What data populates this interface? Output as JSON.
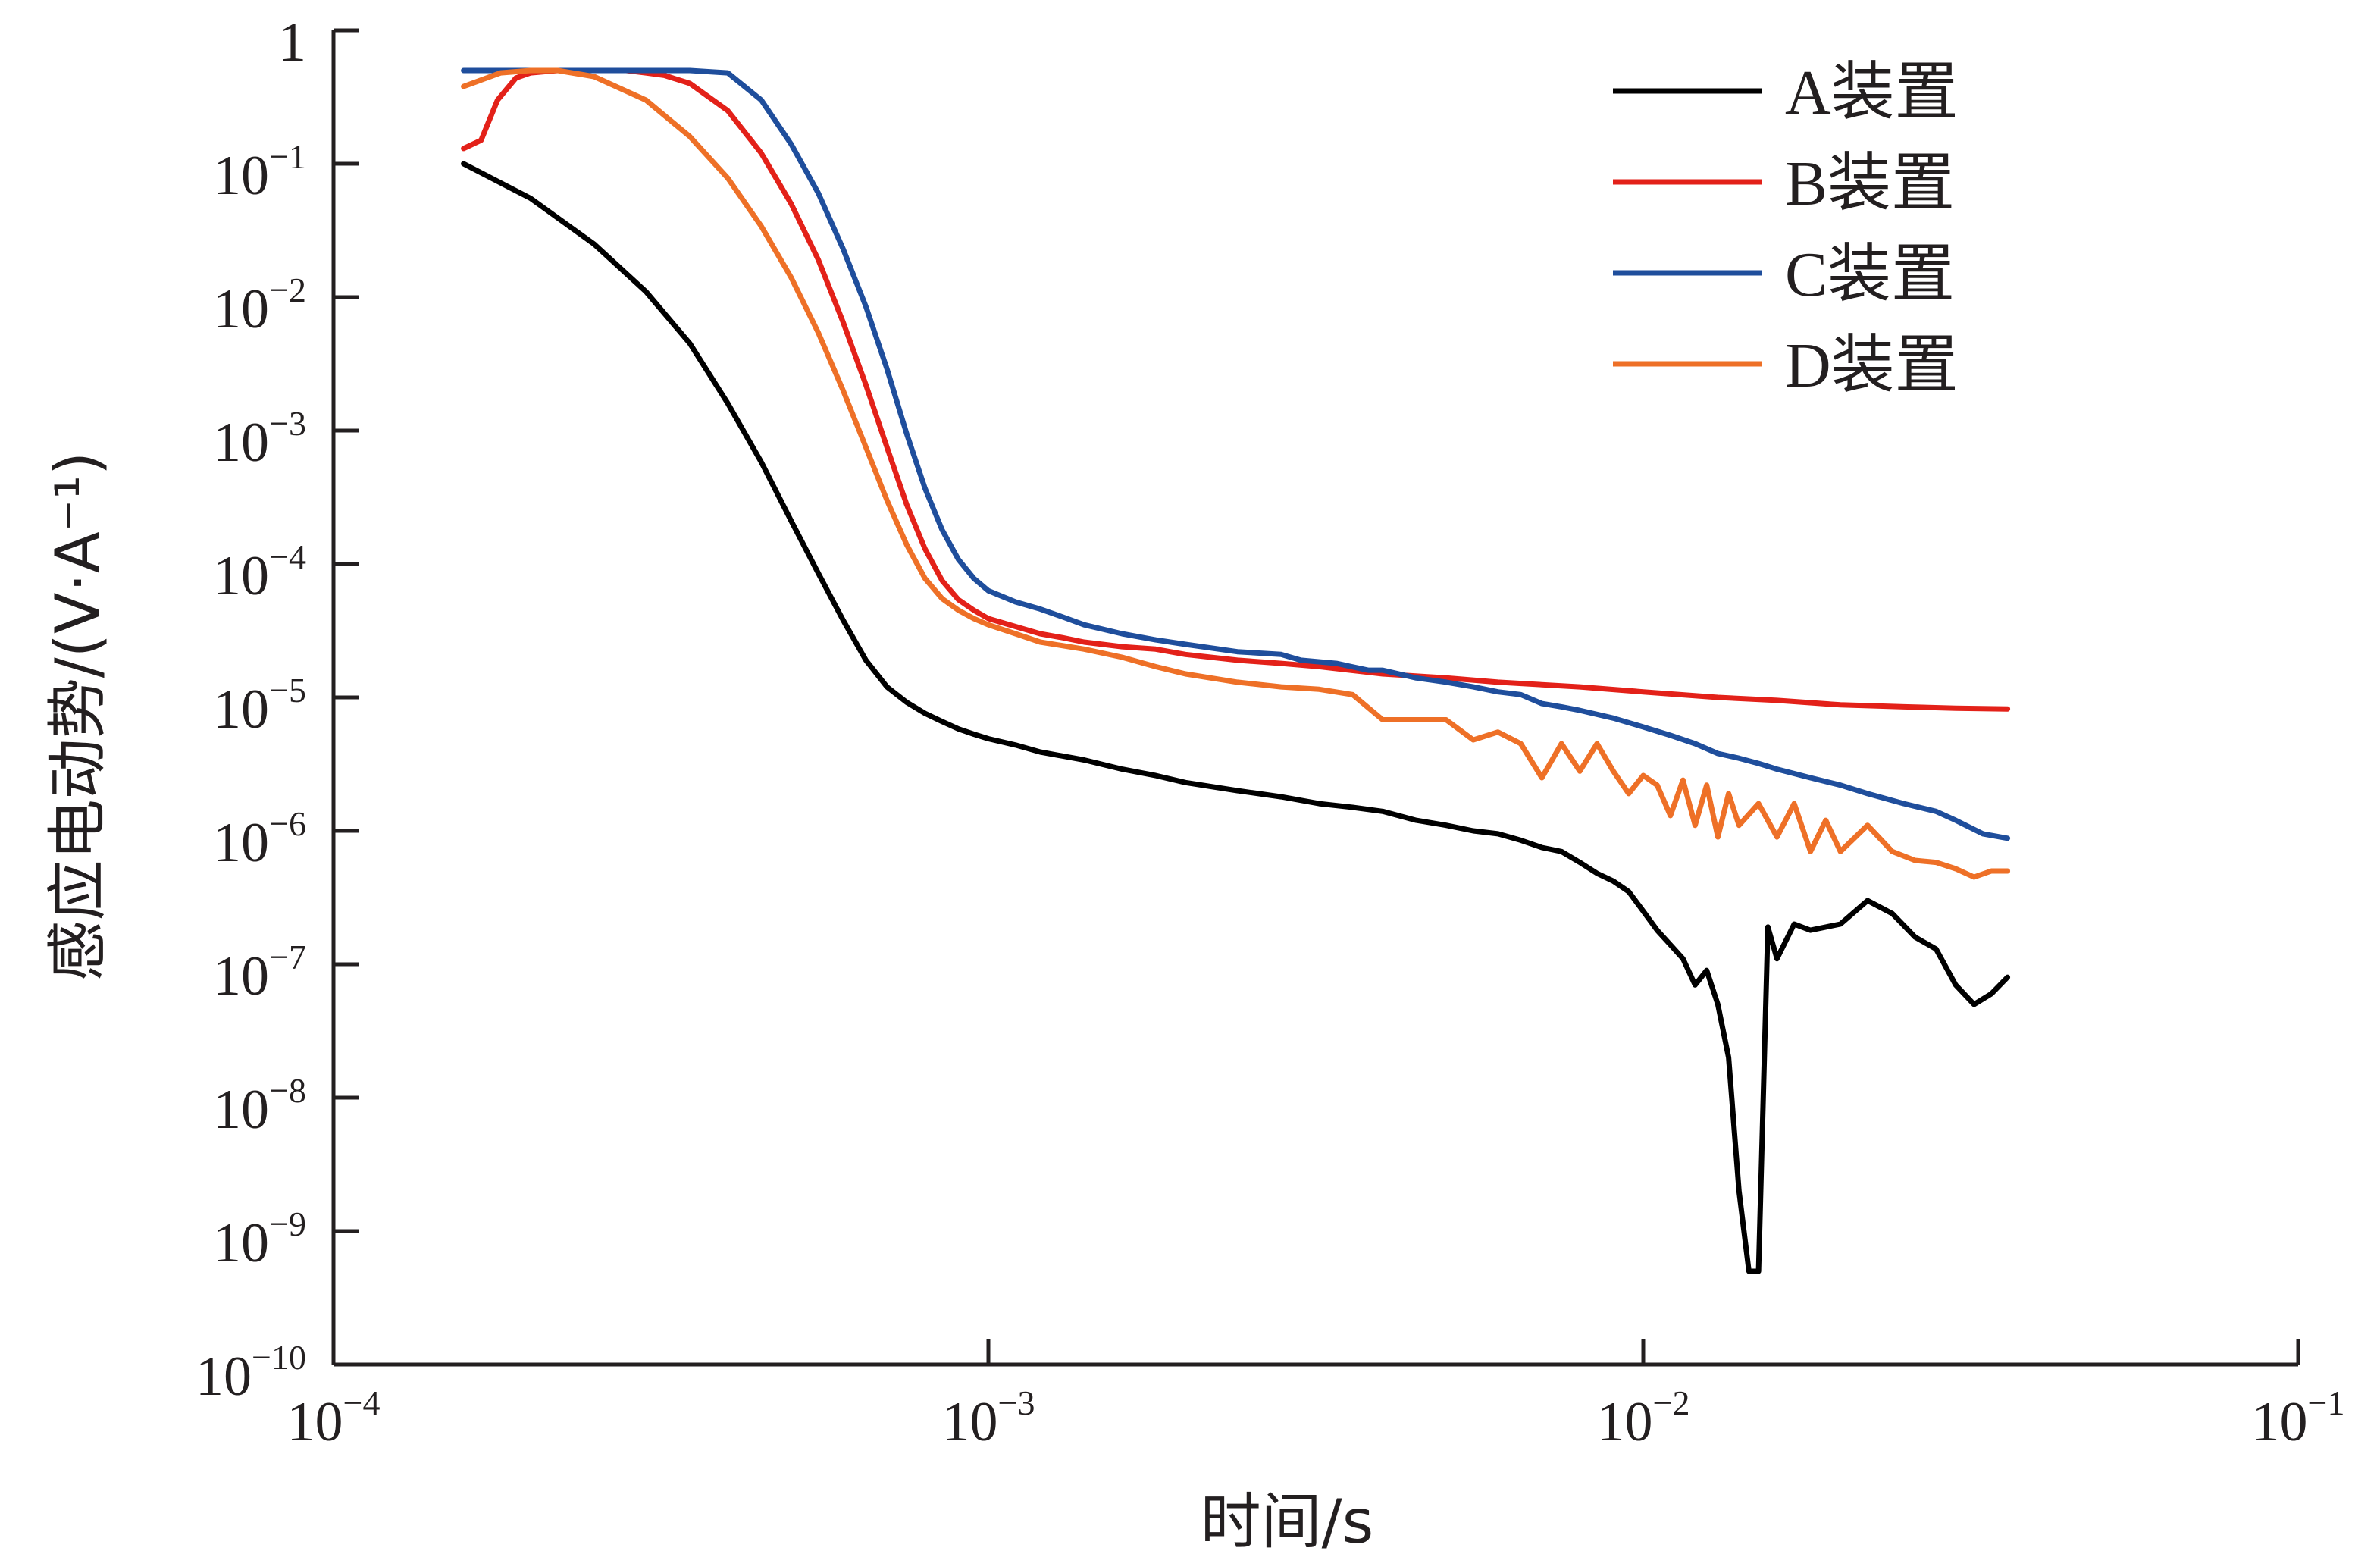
{
  "chart_data": {
    "type": "line",
    "title": "",
    "xlabel": "时间/s",
    "ylabel": "感应电动势/(V·A⁻¹)",
    "x_scale": "log",
    "y_scale": "log",
    "xlim": [
      0.0001,
      0.1
    ],
    "ylim": [
      1e-10,
      1
    ],
    "x_ticks": [
      {
        "value": 0.0001,
        "base": "10",
        "exp": "−4"
      },
      {
        "value": 0.001,
        "base": "10",
        "exp": "−3"
      },
      {
        "value": 0.01,
        "base": "10",
        "exp": "−2"
      },
      {
        "value": 0.1,
        "base": "10",
        "exp": "−1"
      }
    ],
    "y_ticks": [
      {
        "value": 1,
        "base": "1",
        "exp": ""
      },
      {
        "value": 0.1,
        "base": "10",
        "exp": "−1"
      },
      {
        "value": 0.01,
        "base": "10",
        "exp": "−2"
      },
      {
        "value": 0.001,
        "base": "10",
        "exp": "−3"
      },
      {
        "value": 0.0001,
        "base": "10",
        "exp": "−4"
      },
      {
        "value": 1e-05,
        "base": "10",
        "exp": "−5"
      },
      {
        "value": 1e-06,
        "base": "10",
        "exp": "−6"
      },
      {
        "value": 1e-07,
        "base": "10",
        "exp": "−7"
      },
      {
        "value": 1e-08,
        "base": "10",
        "exp": "−8"
      },
      {
        "value": 1e-09,
        "base": "10",
        "exp": "−9"
      },
      {
        "value": 1e-10,
        "base": "10",
        "exp": "−10"
      }
    ],
    "grid": false,
    "legend_position": "top-right",
    "series": [
      {
        "name": "A装置",
        "color": "#000000",
        "x": [
          0.000158,
          0.0002,
          0.00025,
          0.0003,
          0.00035,
          0.0004,
          0.00045,
          0.0005,
          0.00055,
          0.0006,
          0.00065,
          0.0007,
          0.00075,
          0.0008,
          0.00085,
          0.0009,
          0.00095,
          0.001,
          0.0011,
          0.0012,
          0.0014,
          0.0016,
          0.0018,
          0.002,
          0.0024,
          0.0028,
          0.0032,
          0.0036,
          0.004,
          0.0045,
          0.005,
          0.0055,
          0.006,
          0.0065,
          0.007,
          0.0075,
          0.008,
          0.0085,
          0.009,
          0.0095,
          0.01,
          0.0105,
          0.011,
          0.0115,
          0.012,
          0.0125,
          0.013,
          0.0135,
          0.014,
          0.0145,
          0.015,
          0.0155,
          0.016,
          0.017,
          0.018,
          0.019,
          0.02,
          0.022,
          0.024,
          0.026,
          0.028,
          0.03,
          0.032,
          0.034,
          0.036
        ],
        "values": [
          0.1,
          0.055,
          0.025,
          0.011,
          0.0045,
          0.0016,
          0.00058,
          0.00021,
          8.5e-05,
          3.8e-05,
          1.9e-05,
          1.2e-05,
          9.2e-06,
          7.6e-06,
          6.6e-06,
          5.8e-06,
          5.3e-06,
          4.9e-06,
          4.4e-06,
          3.9e-06,
          3.4e-06,
          2.9e-06,
          2.6e-06,
          2.3e-06,
          2e-06,
          1.8e-06,
          1.6e-06,
          1.5e-06,
          1.4e-06,
          1.2e-06,
          1.1e-06,
          1e-06,
          9.5e-07,
          8.5e-07,
          7.5e-07,
          7e-07,
          5.8e-07,
          4.8e-07,
          4.2e-07,
          3.5e-07,
          2.5e-07,
          1.8e-07,
          1.4e-07,
          1.1e-07,
          7e-08,
          9e-08,
          5e-08,
          2e-08,
          2e-09,
          5e-10,
          5e-10,
          1.9e-07,
          1.1e-07,
          2e-07,
          1.8e-07,
          1.9e-07,
          2e-07,
          3e-07,
          2.4e-07,
          1.6e-07,
          1.3e-07,
          7e-08,
          5e-08,
          6e-08,
          8e-08
        ]
      },
      {
        "name": "B装置",
        "color": "#e32119",
        "x": [
          0.000158,
          0.000168,
          0.000178,
          0.00019,
          0.0002,
          0.00022,
          0.00025,
          0.00028,
          0.0003,
          0.00032,
          0.00035,
          0.0004,
          0.00045,
          0.0005,
          0.00055,
          0.0006,
          0.00065,
          0.0007,
          0.00075,
          0.0008,
          0.00085,
          0.0009,
          0.00095,
          0.001,
          0.0011,
          0.0012,
          0.0013,
          0.0014,
          0.0016,
          0.0018,
          0.002,
          0.0024,
          0.0028,
          0.0032,
          0.004,
          0.005,
          0.006,
          0.008,
          0.01,
          0.013,
          0.016,
          0.02,
          0.025,
          0.03,
          0.036
        ],
        "values": [
          0.13,
          0.15,
          0.3,
          0.44,
          0.48,
          0.5,
          0.5,
          0.5,
          0.48,
          0.46,
          0.4,
          0.25,
          0.12,
          0.05,
          0.019,
          0.0065,
          0.0022,
          0.00075,
          0.00028,
          0.00013,
          7.5e-05,
          5.4e-05,
          4.5e-05,
          3.9e-05,
          3.4e-05,
          3e-05,
          2.8e-05,
          2.6e-05,
          2.4e-05,
          2.3e-05,
          2.1e-05,
          1.9e-05,
          1.8e-05,
          1.7e-05,
          1.5e-05,
          1.4e-05,
          1.3e-05,
          1.2e-05,
          1.1e-05,
          1e-05,
          9.5e-06,
          8.8e-06,
          8.5e-06,
          8.3e-06,
          8.2e-06
        ]
      },
      {
        "name": "C装置",
        "color": "#1f4e9c",
        "x": [
          0.000158,
          0.0002,
          0.00025,
          0.0003,
          0.00035,
          0.0004,
          0.00045,
          0.0005,
          0.00055,
          0.0006,
          0.00065,
          0.0007,
          0.00075,
          0.0008,
          0.00085,
          0.0009,
          0.00095,
          0.001,
          0.0011,
          0.0012,
          0.0013,
          0.0014,
          0.0016,
          0.0018,
          0.002,
          0.0024,
          0.0028,
          0.003,
          0.0034,
          0.0038,
          0.004,
          0.0045,
          0.005,
          0.0055,
          0.006,
          0.0065,
          0.007,
          0.0075,
          0.008,
          0.009,
          0.01,
          0.011,
          0.012,
          0.013,
          0.014,
          0.015,
          0.016,
          0.018,
          0.02,
          0.022,
          0.025,
          0.028,
          0.03,
          0.033,
          0.036
        ],
        "values": [
          0.5,
          0.5,
          0.5,
          0.5,
          0.5,
          0.48,
          0.3,
          0.14,
          0.06,
          0.023,
          0.0085,
          0.0029,
          0.00095,
          0.00037,
          0.00018,
          0.000108,
          7.8e-05,
          6.3e-05,
          5.2e-05,
          4.6e-05,
          4e-05,
          3.5e-05,
          3e-05,
          2.7e-05,
          2.5e-05,
          2.2e-05,
          2.1e-05,
          1.9e-05,
          1.8e-05,
          1.6e-05,
          1.6e-05,
          1.4e-05,
          1.3e-05,
          1.2e-05,
          1.1e-05,
          1.05e-05,
          9e-06,
          8.5e-06,
          8e-06,
          7e-06,
          6e-06,
          5.2e-06,
          4.5e-06,
          3.8e-06,
          3.5e-06,
          3.2e-06,
          2.9e-06,
          2.5e-06,
          2.2e-06,
          1.9e-06,
          1.6e-06,
          1.4e-06,
          1.2e-06,
          9.5e-07,
          8.8e-07
        ]
      },
      {
        "name": "D装置",
        "color": "#ee7027",
        "x": [
          0.000158,
          0.00018,
          0.0002,
          0.00022,
          0.00025,
          0.0003,
          0.00035,
          0.0004,
          0.00045,
          0.0005,
          0.00055,
          0.0006,
          0.00065,
          0.0007,
          0.00075,
          0.0008,
          0.00085,
          0.0009,
          0.00095,
          0.001,
          0.0011,
          0.0012,
          0.0014,
          0.0016,
          0.0018,
          0.002,
          0.0024,
          0.0028,
          0.0032,
          0.0036,
          0.004,
          0.0045,
          0.005,
          0.0055,
          0.006,
          0.0065,
          0.007,
          0.0075,
          0.008,
          0.0085,
          0.009,
          0.0095,
          0.01,
          0.0105,
          0.011,
          0.0115,
          0.012,
          0.0125,
          0.013,
          0.0135,
          0.014,
          0.015,
          0.016,
          0.017,
          0.018,
          0.019,
          0.02,
          0.022,
          0.024,
          0.026,
          0.028,
          0.03,
          0.032,
          0.034,
          0.036
        ],
        "values": [
          0.38,
          0.48,
          0.5,
          0.5,
          0.45,
          0.3,
          0.16,
          0.078,
          0.034,
          0.014,
          0.0054,
          0.002,
          0.00075,
          0.0003,
          0.00014,
          7.8e-05,
          5.5e-05,
          4.5e-05,
          3.9e-05,
          3.5e-05,
          3e-05,
          2.6e-05,
          2.3e-05,
          2e-05,
          1.7e-05,
          1.5e-05,
          1.3e-05,
          1.2e-05,
          1.15e-05,
          1.05e-05,
          6.8e-06,
          6.8e-06,
          6.8e-06,
          4.8e-06,
          5.5e-06,
          4.5e-06,
          2.5e-06,
          4.5e-06,
          2.8e-06,
          4.5e-06,
          2.8e-06,
          1.9e-06,
          2.6e-06,
          2.2e-06,
          1.3e-06,
          2.4e-06,
          1.1e-06,
          2.2e-06,
          9e-07,
          1.9e-06,
          1.1e-06,
          1.6e-06,
          9e-07,
          1.6e-06,
          7e-07,
          1.2e-06,
          7e-07,
          1.1e-06,
          7e-07,
          6e-07,
          5.8e-07,
          5.2e-07,
          4.5e-07,
          5e-07,
          5e-07
        ]
      }
    ]
  }
}
